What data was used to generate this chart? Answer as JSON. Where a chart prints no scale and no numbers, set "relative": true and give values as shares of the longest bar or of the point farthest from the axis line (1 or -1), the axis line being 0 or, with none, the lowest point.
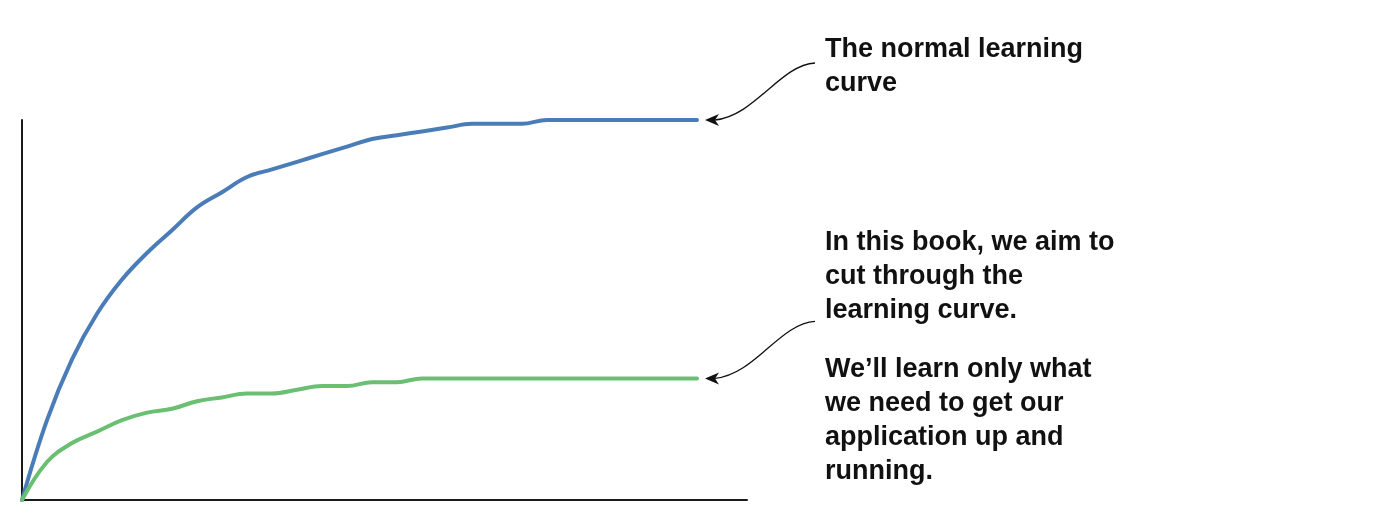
{
  "chart_data": {
    "type": "line",
    "relative": true,
    "marker": "none",
    "line_style": "solid",
    "categories": [
      null,
      null,
      null,
      null,
      null,
      null,
      null,
      null,
      null,
      null,
      null,
      null,
      null,
      null,
      null,
      null,
      null,
      null,
      null,
      null,
      null,
      null,
      null,
      null,
      null,
      null,
      null,
      null,
      null,
      null
    ],
    "series": [
      {
        "color": "#4a7db8",
        "values": [
          0,
          0.21,
          0.37,
          0.49,
          0.58,
          0.65,
          0.71,
          0.77,
          0.81,
          0.85,
          0.87,
          0.89,
          0.91,
          0.93,
          0.95,
          0.96,
          0.97,
          0.98,
          0.99,
          0.99,
          0.99,
          1,
          1,
          1,
          1,
          1,
          1,
          1,
          null,
          null
        ]
      },
      {
        "color": "#6abf73",
        "values": [
          0,
          0.1,
          0.15,
          0.18,
          0.21,
          0.23,
          0.24,
          0.26,
          0.27,
          0.28,
          0.28,
          0.29,
          0.3,
          0.3,
          0.31,
          0.31,
          0.32,
          0.32,
          0.32,
          0.32,
          0.32,
          0.32,
          0.32,
          0.32,
          0.32,
          0.32,
          0.32,
          0.32,
          null,
          null
        ]
      }
    ],
    "annotations": [
      "The normal learning curve",
      "In this book, we aim to cut through the learning curve.",
      "We’ll learn only what we need to get our application up and running."
    ]
  }
}
